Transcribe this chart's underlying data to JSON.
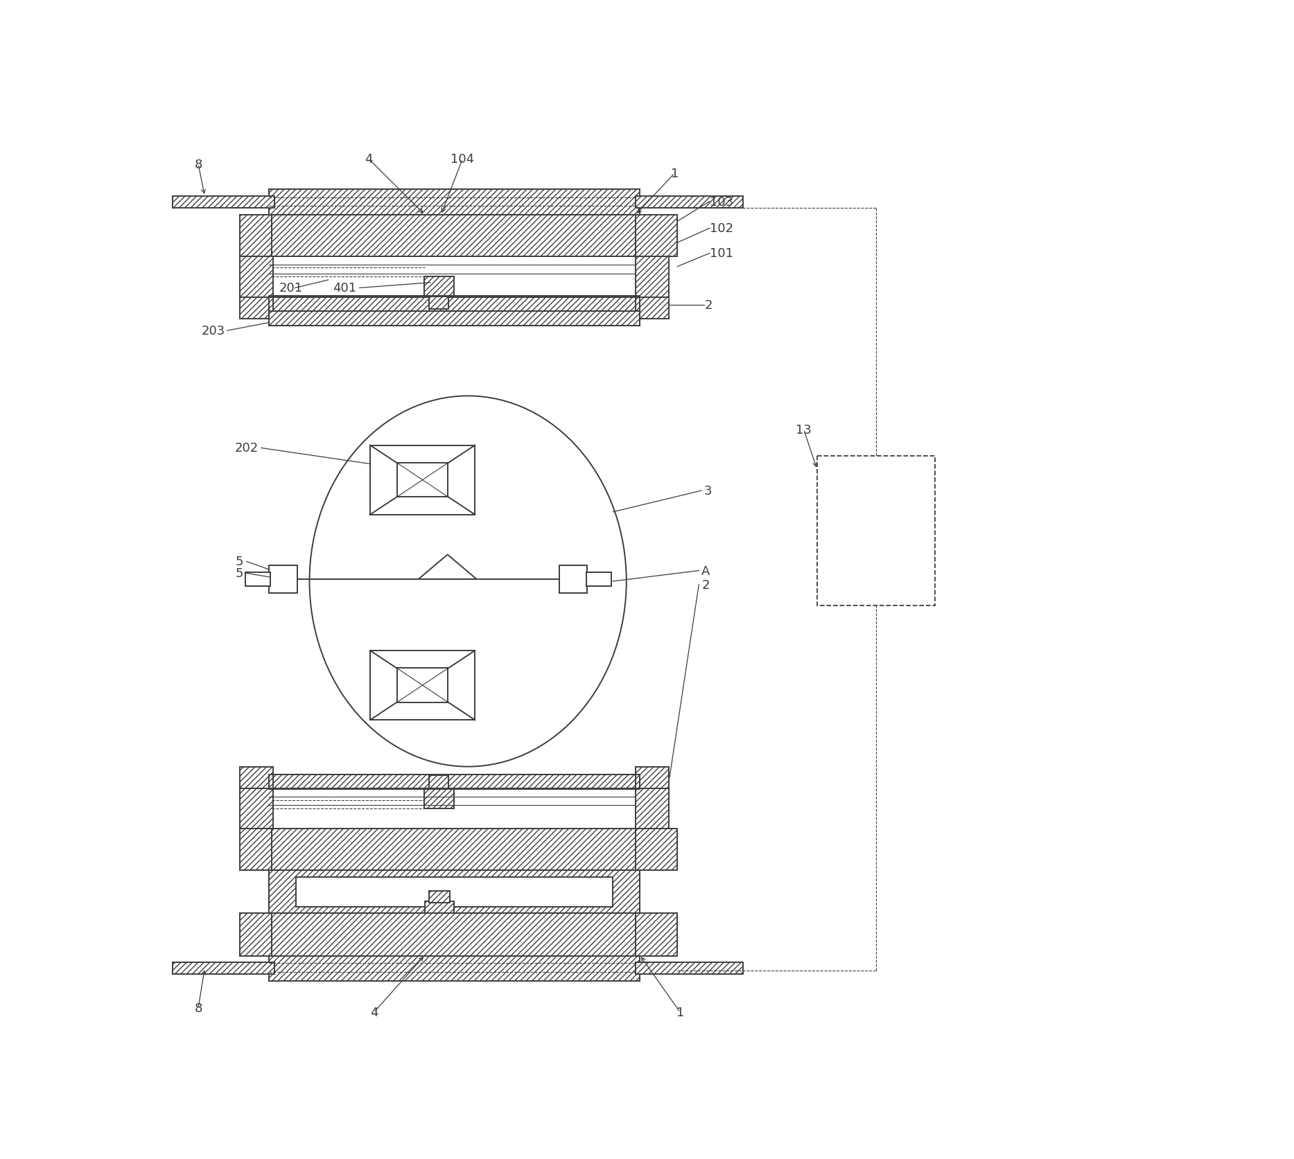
{
  "fig_width": 18.67,
  "fig_height": 16.74,
  "dpi": 100,
  "bg": "#ffffff",
  "lc": "#3c3c3c",
  "lw": 1.4,
  "lt": 0.8,
  "hatch": "////",
  "fs": 13
}
